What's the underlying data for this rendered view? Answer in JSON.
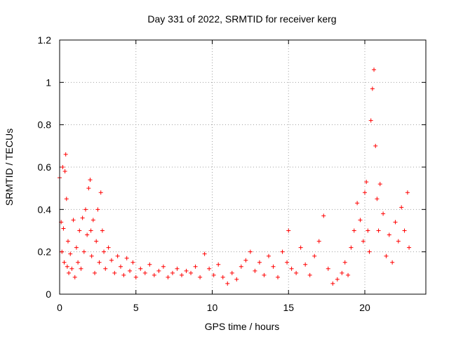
{
  "chart_data": {
    "type": "scatter",
    "title": "Day 331 of 2022, SRMTID for receiver kerg",
    "xlabel": "GPS time / hours",
    "ylabel": "SRMTID / TECUs",
    "xlim": [
      0,
      24
    ],
    "ylim": [
      0,
      1.2
    ],
    "grid": true,
    "marker": "+",
    "color": "#ff0000",
    "x_ticks": [
      0,
      5,
      10,
      15,
      20
    ],
    "x_tick_labels": [
      "0",
      "5",
      "10",
      "15",
      "20"
    ],
    "y_ticks": [
      0,
      0.2,
      0.4,
      0.6,
      0.8,
      1,
      1.2
    ],
    "y_tick_labels": [
      "0",
      "0.2",
      "0.4",
      "0.6",
      "0.8",
      "1",
      "1.2"
    ],
    "series": [
      {
        "name": "SRMTID",
        "x": [
          0.0,
          0.1,
          0.15,
          0.2,
          0.25,
          0.3,
          0.35,
          0.4,
          0.45,
          0.5,
          0.55,
          0.6,
          0.7,
          0.8,
          0.9,
          1.0,
          1.1,
          1.2,
          1.3,
          1.4,
          1.5,
          1.6,
          1.7,
          1.8,
          1.9,
          2.0,
          2.05,
          2.1,
          2.2,
          2.3,
          2.4,
          2.5,
          2.6,
          2.7,
          2.8,
          2.9,
          3.0,
          3.2,
          3.4,
          3.6,
          3.8,
          4.0,
          4.2,
          4.4,
          4.6,
          4.8,
          5.0,
          5.3,
          5.6,
          5.9,
          6.2,
          6.5,
          6.8,
          7.1,
          7.4,
          7.7,
          8.0,
          8.3,
          8.6,
          8.9,
          9.2,
          9.5,
          9.8,
          10.1,
          10.4,
          10.7,
          11.0,
          11.3,
          11.6,
          11.9,
          12.2,
          12.5,
          12.8,
          13.1,
          13.4,
          13.7,
          14.0,
          14.3,
          14.6,
          14.9,
          15.0,
          15.2,
          15.5,
          15.8,
          16.1,
          16.4,
          16.7,
          17.0,
          17.3,
          17.6,
          17.9,
          18.2,
          18.5,
          18.7,
          18.9,
          19.1,
          19.3,
          19.5,
          19.7,
          19.9,
          20.0,
          20.1,
          20.2,
          20.3,
          20.4,
          20.5,
          20.6,
          20.7,
          20.8,
          20.9,
          21.0,
          21.2,
          21.4,
          21.6,
          21.8,
          22.0,
          22.2,
          22.4,
          22.6,
          22.8,
          22.9
        ],
        "y": [
          0.55,
          0.34,
          0.2,
          0.6,
          0.31,
          0.15,
          0.58,
          0.66,
          0.45,
          0.13,
          0.25,
          0.1,
          0.19,
          0.12,
          0.35,
          0.08,
          0.22,
          0.15,
          0.3,
          0.12,
          0.36,
          0.2,
          0.4,
          0.28,
          0.5,
          0.54,
          0.3,
          0.18,
          0.35,
          0.1,
          0.25,
          0.4,
          0.15,
          0.48,
          0.3,
          0.2,
          0.12,
          0.22,
          0.16,
          0.1,
          0.18,
          0.13,
          0.09,
          0.17,
          0.11,
          0.15,
          0.08,
          0.12,
          0.1,
          0.14,
          0.09,
          0.11,
          0.13,
          0.08,
          0.1,
          0.12,
          0.09,
          0.11,
          0.1,
          0.13,
          0.08,
          0.19,
          0.12,
          0.09,
          0.14,
          0.08,
          0.05,
          0.1,
          0.07,
          0.13,
          0.16,
          0.2,
          0.11,
          0.15,
          0.09,
          0.18,
          0.13,
          0.08,
          0.2,
          0.15,
          0.3,
          0.12,
          0.1,
          0.22,
          0.14,
          0.09,
          0.18,
          0.25,
          0.37,
          0.12,
          0.05,
          0.07,
          0.1,
          0.15,
          0.09,
          0.22,
          0.3,
          0.43,
          0.35,
          0.25,
          0.48,
          0.53,
          0.3,
          0.2,
          0.82,
          0.97,
          1.06,
          0.7,
          0.45,
          0.3,
          0.52,
          0.38,
          0.18,
          0.28,
          0.15,
          0.34,
          0.25,
          0.41,
          0.3,
          0.48,
          0.22
        ]
      }
    ]
  }
}
